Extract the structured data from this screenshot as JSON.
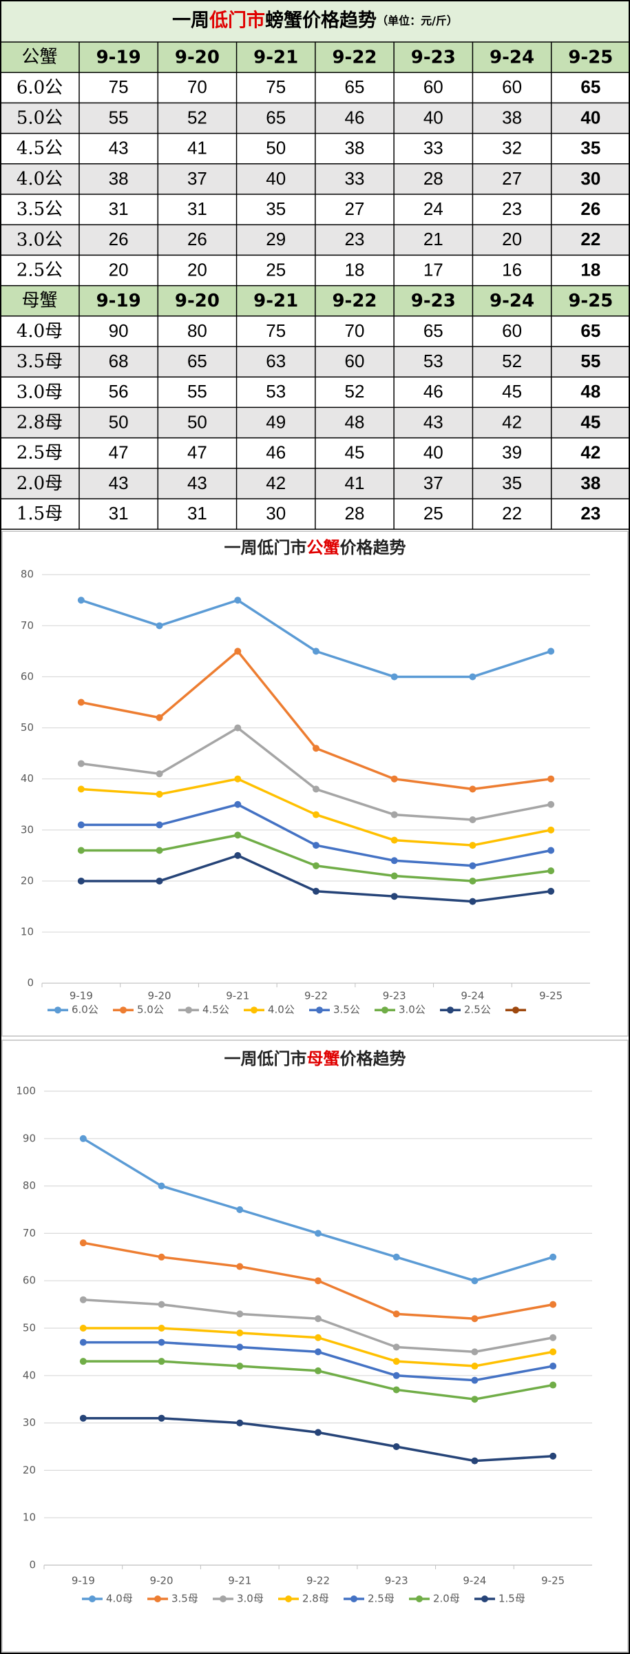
{
  "table": {
    "title": [
      {
        "text": "一周",
        "color": "#000000"
      },
      {
        "text": "低门市",
        "color": "#e00000"
      },
      {
        "text": "螃蟹价格趋势",
        "color": "#000000"
      }
    ],
    "unit": "（单位：元/斤）",
    "sections": [
      {
        "header": [
          "公蟹",
          "9-19",
          "9-20",
          "9-21",
          "9-22",
          "9-23",
          "9-24",
          "9-25"
        ],
        "rows": [
          [
            "6.0公",
            75,
            70,
            75,
            65,
            60,
            60,
            65
          ],
          [
            "5.0公",
            55,
            52,
            65,
            46,
            40,
            38,
            40
          ],
          [
            "4.5公",
            43,
            41,
            50,
            38,
            33,
            32,
            35
          ],
          [
            "4.0公",
            38,
            37,
            40,
            33,
            28,
            27,
            30
          ],
          [
            "3.5公",
            31,
            31,
            35,
            27,
            24,
            23,
            26
          ],
          [
            "3.0公",
            26,
            26,
            29,
            23,
            21,
            20,
            22
          ],
          [
            "2.5公",
            20,
            20,
            25,
            18,
            17,
            16,
            18
          ]
        ]
      },
      {
        "header": [
          "母蟹",
          "9-19",
          "9-20",
          "9-21",
          "9-22",
          "9-23",
          "9-24",
          "9-25"
        ],
        "rows": [
          [
            "4.0母",
            90,
            80,
            75,
            70,
            65,
            60,
            65
          ],
          [
            "3.5母",
            68,
            65,
            63,
            60,
            53,
            52,
            55
          ],
          [
            "3.0母",
            56,
            55,
            53,
            52,
            46,
            45,
            48
          ],
          [
            "2.8母",
            50,
            50,
            49,
            48,
            43,
            42,
            45
          ],
          [
            "2.5母",
            47,
            47,
            46,
            45,
            40,
            39,
            42
          ],
          [
            "2.0母",
            43,
            43,
            42,
            41,
            37,
            35,
            38
          ],
          [
            "1.5母",
            31,
            31,
            30,
            28,
            25,
            22,
            23
          ]
        ]
      }
    ]
  },
  "chart_data": [
    {
      "type": "line",
      "title": [
        {
          "text": "一周低门市",
          "color": "#222222"
        },
        {
          "text": "公蟹",
          "color": "#e00000"
        },
        {
          "text": "价格趋势",
          "color": "#222222"
        }
      ],
      "categories": [
        "9-19",
        "9-20",
        "9-21",
        "9-22",
        "9-23",
        "9-24",
        "9-25"
      ],
      "ylim": [
        0,
        80
      ],
      "yticks": [
        0,
        10,
        20,
        30,
        40,
        50,
        60,
        70,
        80
      ],
      "grid": true,
      "series": [
        {
          "name": "6.0公",
          "color": "#5b9bd5",
          "values": [
            75,
            70,
            75,
            65,
            60,
            60,
            65
          ]
        },
        {
          "name": "5.0公",
          "color": "#ed7d31",
          "values": [
            55,
            52,
            65,
            46,
            40,
            38,
            40
          ]
        },
        {
          "name": "4.5公",
          "color": "#a5a5a5",
          "values": [
            43,
            41,
            50,
            38,
            33,
            32,
            35
          ]
        },
        {
          "name": "4.0公",
          "color": "#ffc000",
          "values": [
            38,
            37,
            40,
            33,
            28,
            27,
            30
          ]
        },
        {
          "name": "3.5公",
          "color": "#4472c4",
          "values": [
            31,
            31,
            35,
            27,
            24,
            23,
            26
          ]
        },
        {
          "name": "3.0公",
          "color": "#70ad47",
          "values": [
            26,
            26,
            29,
            23,
            21,
            20,
            22
          ]
        },
        {
          "name": "2.5公",
          "color": "#264478",
          "values": [
            20,
            20,
            25,
            18,
            17,
            16,
            18
          ]
        },
        {
          "name": null,
          "color": "#9e480e",
          "values": [
            null,
            null,
            null,
            null,
            null,
            null,
            null
          ]
        }
      ]
    },
    {
      "type": "line",
      "title": [
        {
          "text": "一周低门市",
          "color": "#222222"
        },
        {
          "text": "母蟹",
          "color": "#e00000"
        },
        {
          "text": "价格趋势",
          "color": "#222222"
        }
      ],
      "categories": [
        "9-19",
        "9-20",
        "9-21",
        "9-22",
        "9-23",
        "9-24",
        "9-25"
      ],
      "ylim": [
        0,
        100
      ],
      "yticks": [
        0,
        10,
        20,
        30,
        40,
        50,
        60,
        70,
        80,
        90,
        100
      ],
      "grid": true,
      "series": [
        {
          "name": "4.0母",
          "color": "#5b9bd5",
          "values": [
            90,
            80,
            75,
            70,
            65,
            60,
            65
          ]
        },
        {
          "name": "3.5母",
          "color": "#ed7d31",
          "values": [
            68,
            65,
            63,
            60,
            53,
            52,
            55
          ]
        },
        {
          "name": "3.0母",
          "color": "#a5a5a5",
          "values": [
            56,
            55,
            53,
            52,
            46,
            45,
            48
          ]
        },
        {
          "name": "2.8母",
          "color": "#ffc000",
          "values": [
            50,
            50,
            49,
            48,
            43,
            42,
            45
          ]
        },
        {
          "name": "2.5母",
          "color": "#4472c4",
          "values": [
            47,
            47,
            46,
            45,
            40,
            39,
            42
          ]
        },
        {
          "name": "2.0母",
          "color": "#70ad47",
          "values": [
            43,
            43,
            42,
            41,
            37,
            35,
            38
          ]
        },
        {
          "name": "1.5母",
          "color": "#264478",
          "values": [
            31,
            31,
            30,
            28,
            25,
            22,
            23
          ]
        }
      ]
    }
  ]
}
